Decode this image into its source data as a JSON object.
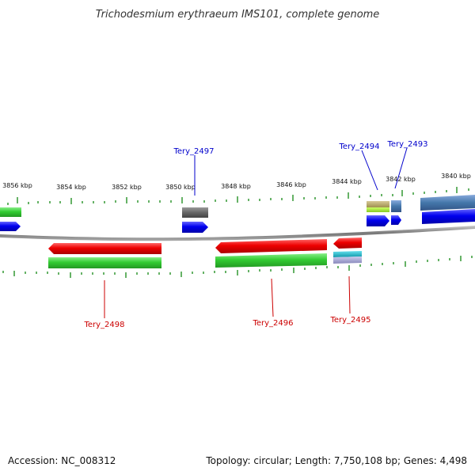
{
  "title": "Trichodesmium erythraeum IMS101, complete genome",
  "footer": {
    "accession": "Accession: NC_008312",
    "summary": "Topology: circular; Length: 7,750,108 bp; Genes: 4,498"
  },
  "scale_labels": [
    "3856 kbp",
    "3854 kbp",
    "3852 kbp",
    "3850 kbp",
    "3848 kbp",
    "3846 kbp",
    "3844 kbp",
    "3842 kbp",
    "3840 kbp"
  ],
  "gene_labels": {
    "tery_2497": "Tery_2497",
    "tery_2494": "Tery_2494",
    "tery_2493": "Tery_2493",
    "tery_2498": "Tery_2498",
    "tery_2496": "Tery_2496",
    "tery_2495": "Tery_2495"
  },
  "colors": {
    "forward_label": "#0000cc",
    "reverse_label": "#cc0000",
    "tick": "#339933",
    "backbone": "#888888",
    "red": "#ee0000",
    "green": "#33cc33",
    "blue": "#0000ee",
    "steel_blue": "#4477aa",
    "gray": "#666666",
    "olive": "#b0a060",
    "lime": "#99dd33",
    "cyan": "#22bbcc",
    "lavender": "#9999cc"
  }
}
